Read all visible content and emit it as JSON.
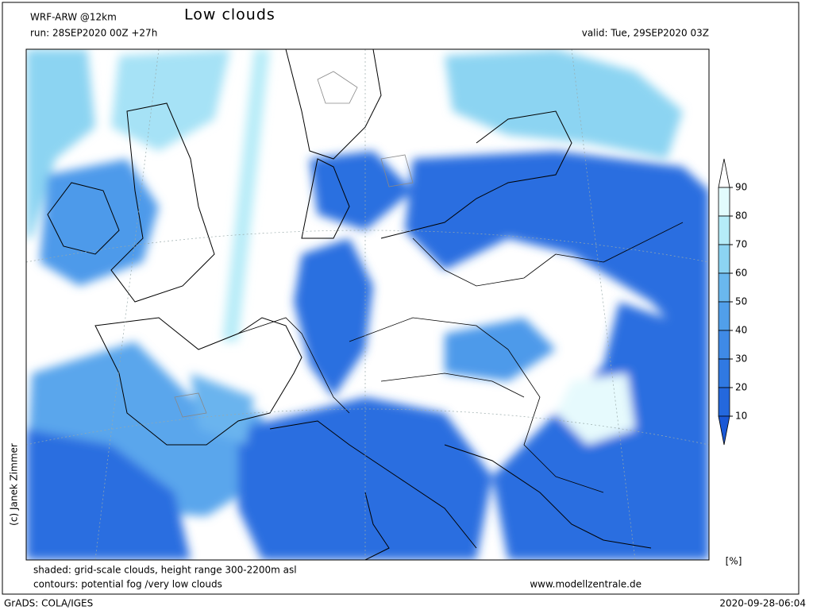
{
  "header": {
    "model": "WRF-ARW @12km",
    "title": "Low clouds",
    "run": "run: 28SEP2020 00Z +27h",
    "valid": "valid: Tue, 29SEP2020 03Z"
  },
  "colorbar": {
    "levels": [
      10,
      20,
      30,
      40,
      50,
      60,
      70,
      80,
      90
    ],
    "unit": "[%]"
  },
  "credit": "(c) Janek Zimmer",
  "footer": {
    "shaded": "shaded: grid-scale clouds, height range 300-2200m asl",
    "contours": "contours: potential fog /very low clouds",
    "website": "www.modellzentrale.de",
    "software": "GrADS: COLA/IGES",
    "timestamp": "2020-09-28-06:04"
  }
}
